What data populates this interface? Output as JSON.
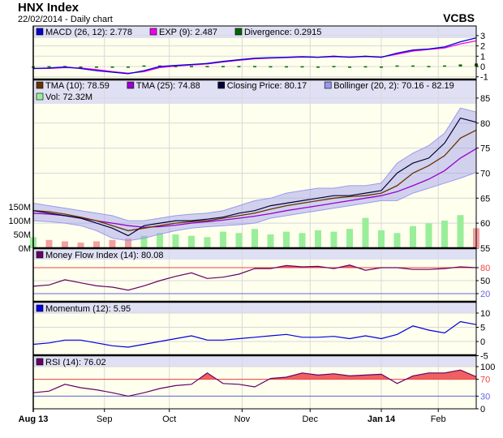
{
  "header": {
    "title": "HNX Index",
    "subtitle": "22/02/2014 - Daily chart",
    "brand": "VCBS"
  },
  "colors": {
    "plot_bg": "#ffffee",
    "legend_bg": "#dfe0f4",
    "grid": "#d8d8d8",
    "macd": "#0000cc",
    "exp": "#ee00ee",
    "divergence": "#006600",
    "tma10": "#663300",
    "tma25": "#9900cc",
    "close": "#000033",
    "bollinger": "#9999ee",
    "vol_up": "#99ee99",
    "vol_down": "#f4a0a0",
    "overbought": "#ee4444",
    "oversold": "#6666dd",
    "fill": "#f06060",
    "mfi": "#660066",
    "momentum": "#0000dd"
  },
  "chart_data": {
    "type": "line",
    "x_ticks": [
      {
        "label": "Aug 13",
        "index": 0,
        "bold": true
      },
      {
        "label": "Sep",
        "index": 4.5
      },
      {
        "label": "Oct",
        "index": 8.6
      },
      {
        "label": "Nov",
        "index": 13.2
      },
      {
        "label": "Dec",
        "index": 17.5
      },
      {
        "label": "Jan 14",
        "index": 22,
        "bold": true
      },
      {
        "label": "Feb",
        "index": 25.6
      }
    ],
    "points": 29,
    "macd_panel": {
      "legend": [
        "MACD (26, 12): 2.778",
        "EXP (9): 2.487",
        "Divergence: 0.2915"
      ],
      "yticks": [
        3,
        2,
        1,
        0,
        -1
      ],
      "ylim": [
        -1,
        3
      ],
      "macd": [
        -0.2,
        -0.15,
        -0.05,
        -0.2,
        -0.4,
        -0.55,
        -0.7,
        -0.4,
        0,
        0.1,
        0.2,
        0.3,
        0.5,
        0.65,
        0.8,
        0.85,
        0.9,
        0.95,
        0.9,
        1.0,
        0.9,
        1.0,
        0.9,
        1.3,
        1.6,
        1.7,
        1.9,
        2.4,
        2.778
      ],
      "exp": [
        -0.2,
        -0.18,
        -0.1,
        -0.15,
        -0.3,
        -0.5,
        -0.65,
        -0.5,
        -0.1,
        0.05,
        0.15,
        0.25,
        0.45,
        0.6,
        0.75,
        0.82,
        0.87,
        0.92,
        0.9,
        0.95,
        0.92,
        0.97,
        0.92,
        1.2,
        1.5,
        1.65,
        1.8,
        2.2,
        2.487
      ]
    },
    "price_panel": {
      "legend": [
        "TMA (10): 78.59",
        "TMA (25): 74.88",
        "Closing Price: 80.17",
        "Bollinger (20, 2): 70.16 - 82.19",
        "Vol: 72.32M"
      ],
      "yticks": [
        85,
        80,
        75,
        70,
        65,
        60,
        55
      ],
      "ylim": [
        55,
        85
      ],
      "vol_ticks": [
        "150M",
        "100M",
        "50M",
        "0M"
      ],
      "vol_tick_values": [
        150,
        100,
        50,
        0
      ],
      "close": [
        62.5,
        62,
        61.5,
        61,
        60,
        59,
        57.5,
        59.5,
        60,
        60.5,
        60.5,
        60.8,
        61.2,
        62,
        62.5,
        63.5,
        64,
        64.5,
        65,
        65.5,
        65.5,
        66,
        66.5,
        70,
        72,
        73,
        76,
        81,
        80.17
      ],
      "tma10": [
        62.5,
        62.3,
        61.8,
        61.2,
        60.5,
        59.5,
        58.5,
        59,
        59.5,
        60,
        60.3,
        60.5,
        61,
        61.5,
        62,
        62.8,
        63.5,
        64,
        64.5,
        65,
        65.3,
        65.5,
        66,
        67.5,
        70,
        71.5,
        73.5,
        77,
        78.59
      ],
      "tma25": [
        62,
        61.8,
        61.5,
        61,
        60.5,
        60,
        59.5,
        59.2,
        59.3,
        59.6,
        60,
        60.3,
        60.6,
        61,
        61.4,
        61.9,
        62.5,
        63,
        63.5,
        64,
        64.5,
        65,
        65.5,
        66.3,
        67.5,
        68.8,
        70.5,
        73,
        74.88
      ],
      "boll_upper": [
        64,
        63.5,
        63,
        62.5,
        62,
        61.5,
        60.5,
        60.5,
        61,
        61.5,
        61.8,
        62,
        62.5,
        63.5,
        64.5,
        65,
        66,
        66.5,
        67,
        67,
        67.5,
        67.5,
        68,
        72,
        74,
        75.5,
        78,
        83,
        82.19
      ],
      "boll_lower": [
        60.5,
        60.3,
        60,
        59.5,
        58.5,
        57,
        56.5,
        57,
        57.8,
        58.5,
        59,
        59.3,
        59.5,
        59.7,
        60,
        61,
        61.5,
        62,
        62.5,
        63,
        63.5,
        64,
        64.5,
        64.5,
        66,
        67,
        68,
        69,
        70.16
      ],
      "volume_m": [
        40,
        30,
        25,
        20,
        25,
        30,
        35,
        45,
        55,
        50,
        45,
        40,
        60,
        55,
        70,
        50,
        60,
        55,
        65,
        60,
        70,
        110,
        65,
        55,
        80,
        90,
        100,
        120,
        72.32
      ]
    },
    "mfi_panel": {
      "legend": [
        "Money Flow Index (14): 80.08"
      ],
      "yticks": [
        80,
        50,
        20
      ],
      "ylim": [
        0,
        100
      ],
      "overbought": 80,
      "oversold": 20,
      "values": [
        37,
        40,
        52,
        45,
        38,
        35,
        28,
        38,
        50,
        60,
        68,
        55,
        58,
        65,
        78,
        78,
        85,
        82,
        83,
        78,
        86,
        74,
        80,
        80,
        76,
        76,
        78,
        82,
        80.08
      ]
    },
    "momentum_panel": {
      "legend": [
        "Momentum (12): 5.95"
      ],
      "yticks": [
        10,
        5,
        0,
        -5
      ],
      "ylim": [
        -5,
        12
      ],
      "values": [
        -1,
        -0.5,
        0.5,
        0.5,
        -0.5,
        -1.5,
        -2,
        -1,
        0,
        1,
        2,
        0.5,
        0.5,
        1,
        1.5,
        2,
        2.5,
        1.5,
        1.5,
        1.8,
        1,
        2,
        1,
        2.5,
        5.5,
        4,
        3,
        7,
        5.95
      ]
    },
    "rsi_panel": {
      "legend": [
        "RSI (14): 76.02"
      ],
      "yticks": [
        100,
        70,
        30,
        0
      ],
      "ylim": [
        0,
        100
      ],
      "overbought": 70,
      "oversold": 30,
      "values": [
        38,
        42,
        58,
        50,
        45,
        38,
        30,
        38,
        48,
        55,
        58,
        85,
        60,
        58,
        52,
        72,
        75,
        85,
        80,
        83,
        78,
        80,
        82,
        60,
        78,
        85,
        85,
        92,
        76.02
      ]
    }
  }
}
